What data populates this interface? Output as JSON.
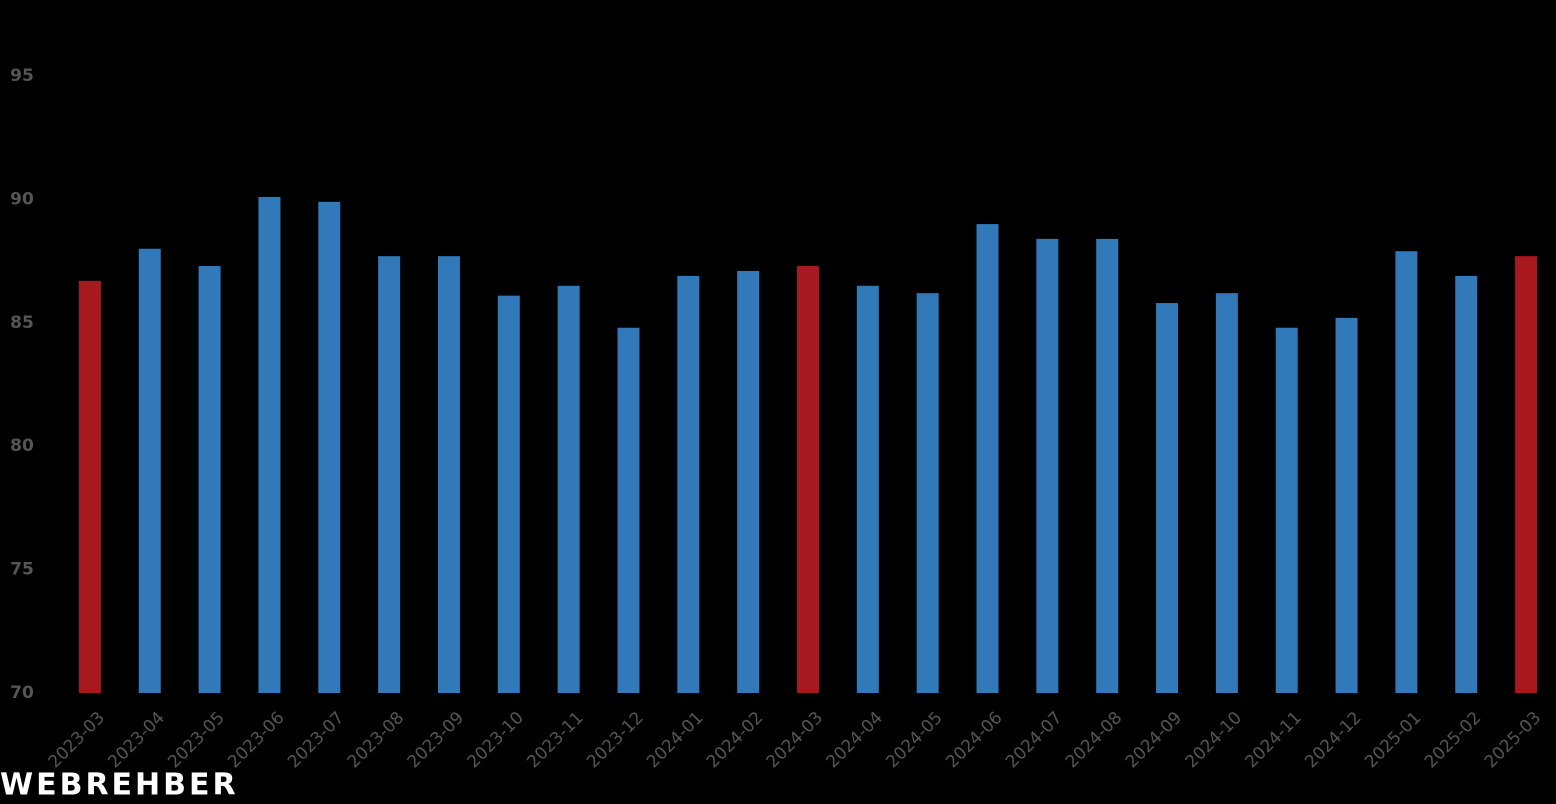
{
  "chart_data": {
    "type": "bar",
    "categories": [
      "2023-03",
      "2023-04",
      "2023-05",
      "2023-06",
      "2023-07",
      "2023-08",
      "2023-09",
      "2023-10",
      "2023-11",
      "2023-12",
      "2024-01",
      "2024-02",
      "2024-03",
      "2024-04",
      "2024-05",
      "2024-06",
      "2024-07",
      "2024-08",
      "2024-09",
      "2024-10",
      "2024-11",
      "2024-12",
      "2025-01",
      "2025-02",
      "2025-03"
    ],
    "values": [
      86.7,
      88.0,
      87.3,
      90.1,
      89.9,
      87.7,
      87.7,
      86.1,
      86.5,
      84.8,
      86.9,
      87.1,
      87.3,
      86.5,
      86.2,
      89.0,
      88.4,
      88.4,
      85.8,
      86.2,
      84.8,
      85.2,
      87.9,
      86.9,
      87.7
    ],
    "colors": [
      "#a8191f",
      "#3179b8",
      "#3179b8",
      "#3179b8",
      "#3179b8",
      "#3179b8",
      "#3179b8",
      "#3179b8",
      "#3179b8",
      "#3179b8",
      "#3179b8",
      "#3179b8",
      "#a8191f",
      "#3179b8",
      "#3179b8",
      "#3179b8",
      "#3179b8",
      "#3179b8",
      "#3179b8",
      "#3179b8",
      "#3179b8",
      "#3179b8",
      "#3179b8",
      "#3179b8",
      "#a8191f"
    ],
    "ylim": [
      70,
      98
    ],
    "yticks": [
      70,
      75,
      80,
      85,
      90,
      95
    ],
    "grid": false,
    "watermark": "WEBREHBER"
  }
}
